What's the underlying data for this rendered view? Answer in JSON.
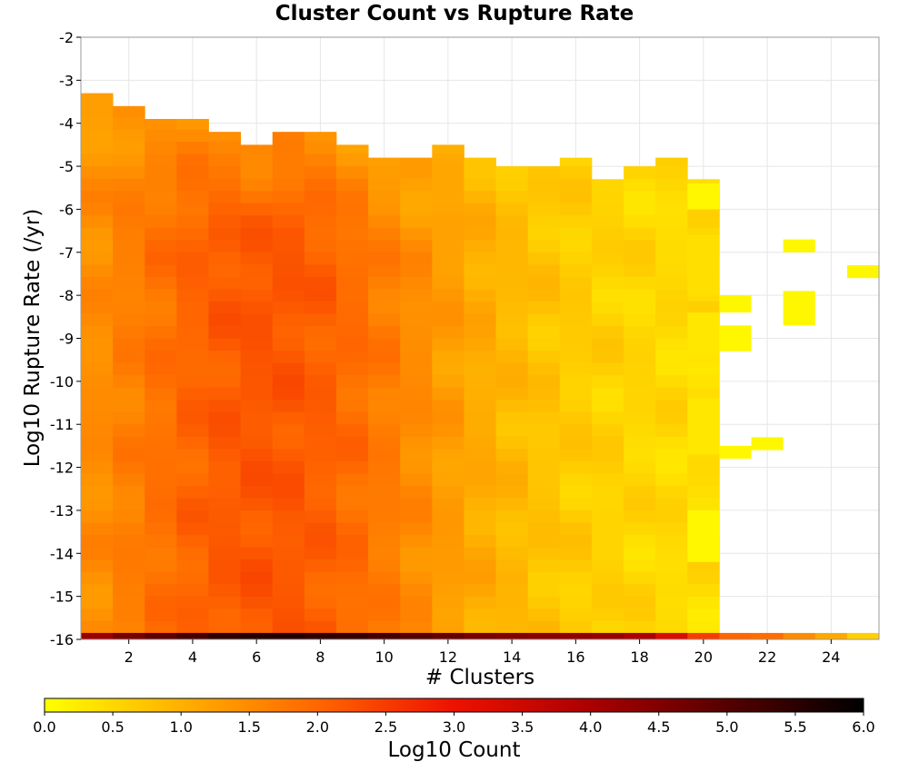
{
  "chart_data": {
    "type": "heatmap",
    "title": "Cluster Count vs Rupture Rate",
    "xlabel": "# Clusters",
    "ylabel": "Log10 Rupture Rate (/yr)",
    "xlim": [
      0.5,
      25.5
    ],
    "ylim": [
      -16,
      -2
    ],
    "x_ticks": [
      "2",
      "4",
      "6",
      "8",
      "10",
      "12",
      "14",
      "16",
      "18",
      "20",
      "22",
      "24"
    ],
    "y_ticks": [
      "-2",
      "-3",
      "-4",
      "-5",
      "-6",
      "-7",
      "-8",
      "-9",
      "-10",
      "-11",
      "-12",
      "-13",
      "-14",
      "-15",
      "-16"
    ],
    "grid": true,
    "colorbar": {
      "label": "Log10 Count",
      "range": [
        0.0,
        6.0
      ],
      "ticks": [
        "0.0",
        "0.5",
        "1.0",
        "1.5",
        "2.0",
        "2.5",
        "3.0",
        "3.5",
        "4.0",
        "4.5",
        "5.0",
        "5.5",
        "6.0"
      ],
      "colors": [
        "#ffff00",
        "#ffb000",
        "#ff6600",
        "#ee1100",
        "#aa0000",
        "#550000",
        "#000000"
      ]
    },
    "bin_height_log10": 0.2857,
    "upper_rate_edge_by_cluster": [
      {
        "x": 1,
        "top": -3.3
      },
      {
        "x": 2,
        "top": -3.6
      },
      {
        "x": 3,
        "top": -3.9
      },
      {
        "x": 4,
        "top": -3.9
      },
      {
        "x": 5,
        "top": -4.2
      },
      {
        "x": 6,
        "top": -4.5
      },
      {
        "x": 7,
        "top": -4.2
      },
      {
        "x": 8,
        "top": -4.2
      },
      {
        "x": 9,
        "top": -4.5
      },
      {
        "x": 10,
        "top": -4.8
      },
      {
        "x": 11,
        "top": -4.8
      },
      {
        "x": 12,
        "top": -4.5
      },
      {
        "x": 13,
        "top": -4.8
      },
      {
        "x": 14,
        "top": -5.0
      },
      {
        "x": 15,
        "top": -5.0
      },
      {
        "x": 16,
        "top": -4.8
      },
      {
        "x": 17,
        "top": -5.3
      },
      {
        "x": 18,
        "top": -5.0
      },
      {
        "x": 19,
        "top": -4.8
      },
      {
        "x": 20,
        "top": -5.3
      }
    ],
    "lowest_bin_row": [
      {
        "x": 1,
        "log10_count": 4.2
      },
      {
        "x": 2,
        "log10_count": 4.6
      },
      {
        "x": 3,
        "log10_count": 4.9
      },
      {
        "x": 4,
        "log10_count": 5.2
      },
      {
        "x": 5,
        "log10_count": 5.5
      },
      {
        "x": 6,
        "log10_count": 5.6
      },
      {
        "x": 7,
        "log10_count": 5.6
      },
      {
        "x": 8,
        "log10_count": 5.5
      },
      {
        "x": 9,
        "log10_count": 5.4
      },
      {
        "x": 10,
        "log10_count": 5.2
      },
      {
        "x": 11,
        "log10_count": 5.0
      },
      {
        "x": 12,
        "log10_count": 4.8
      },
      {
        "x": 13,
        "log10_count": 4.6
      },
      {
        "x": 14,
        "log10_count": 4.5
      },
      {
        "x": 15,
        "log10_count": 4.4
      },
      {
        "x": 16,
        "log10_count": 4.3
      },
      {
        "x": 17,
        "log10_count": 4.2
      },
      {
        "x": 18,
        "log10_count": 4.0
      },
      {
        "x": 19,
        "log10_count": 3.3
      },
      {
        "x": 20,
        "log10_count": 2.5
      },
      {
        "x": 21,
        "log10_count": 2.0
      },
      {
        "x": 22,
        "log10_count": 1.9
      },
      {
        "x": 23,
        "log10_count": 1.5
      },
      {
        "x": 24,
        "log10_count": 1.1
      },
      {
        "x": 25,
        "log10_count": 0.6
      }
    ],
    "sparse_cells": [
      {
        "x": 20,
        "y": [
          -6.0,
          -5.4
        ],
        "log10_count": 0.1
      },
      {
        "x": 20,
        "y": [
          -8.0,
          -6.6
        ],
        "log10_count": 0.4
      },
      {
        "x": 20,
        "y": [
          -9.4,
          -8.4
        ],
        "log10_count": 0.3
      },
      {
        "x": 20,
        "y": [
          -11.7,
          -10.4
        ],
        "log10_count": 0.3
      },
      {
        "x": 20,
        "y": [
          -14.2,
          -13.0
        ],
        "log10_count": 0.1
      },
      {
        "x": 21,
        "y": [
          -8.4,
          -8.0
        ],
        "log10_count": 0.1
      },
      {
        "x": 21,
        "y": [
          -9.3,
          -8.7
        ],
        "log10_count": 0.1
      },
      {
        "x": 21,
        "y": [
          -11.8,
          -11.5
        ],
        "log10_count": 0.1
      },
      {
        "x": 22,
        "y": [
          -11.6,
          -11.3
        ],
        "log10_count": 0.1
      },
      {
        "x": 23,
        "y": [
          -7.0,
          -6.7
        ],
        "log10_count": 0.1
      },
      {
        "x": 23,
        "y": [
          -8.7,
          -7.9
        ],
        "log10_count": 0.1
      },
      {
        "x": 25,
        "y": [
          -7.6,
          -7.3
        ],
        "log10_count": 0.1
      }
    ]
  }
}
